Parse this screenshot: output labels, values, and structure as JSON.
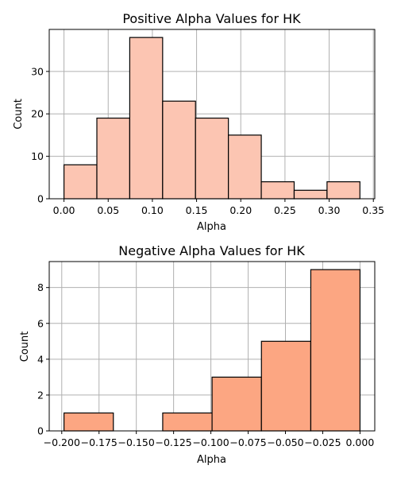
{
  "chart_data": [
    {
      "type": "bar",
      "title": "Positive Alpha Values for HK",
      "xlabel": "Alpha",
      "ylabel": "Count",
      "bin_edges": [
        0.0,
        0.0372,
        0.0744,
        0.1116,
        0.1488,
        0.186,
        0.2232,
        0.2604,
        0.2976,
        0.3348
      ],
      "values": [
        8,
        19,
        38,
        23,
        19,
        15,
        4,
        2,
        4
      ],
      "xlim": [
        -0.0167,
        0.3516
      ],
      "ylim": [
        0,
        39.9
      ],
      "xticks": [
        0.0,
        0.05,
        0.1,
        0.15,
        0.2,
        0.25,
        0.3,
        0.35
      ],
      "xtick_labels": [
        "0.00",
        "0.05",
        "0.10",
        "0.15",
        "0.20",
        "0.25",
        "0.30",
        "0.35"
      ],
      "yticks": [
        0,
        10,
        20,
        30
      ],
      "ytick_labels": [
        "0",
        "10",
        "20",
        "30"
      ],
      "grid": true,
      "color": "#fcc5b2"
    },
    {
      "type": "bar",
      "title": "Negative Alpha Values for HK",
      "xlabel": "Alpha",
      "ylabel": "Count",
      "bin_edges": [
        -0.1985,
        -0.1654,
        -0.1323,
        -0.0992,
        -0.0661,
        -0.033,
        0.0
      ],
      "values": [
        1,
        0,
        1,
        3,
        5,
        9
      ],
      "xlim": [
        -0.2084,
        0.0099
      ],
      "ylim": [
        0,
        9.45
      ],
      "xticks": [
        -0.2,
        -0.175,
        -0.15,
        -0.125,
        -0.1,
        -0.075,
        -0.05,
        -0.025,
        0.0
      ],
      "xtick_labels": [
        "−0.200",
        "−0.175",
        "−0.150",
        "−0.125",
        "−0.100",
        "−0.075",
        "−0.050",
        "−0.025",
        "0.000"
      ],
      "yticks": [
        0,
        2,
        4,
        6,
        8
      ],
      "ytick_labels": [
        "0",
        "2",
        "4",
        "6",
        "8"
      ],
      "grid": true,
      "color": "#fca682"
    }
  ]
}
